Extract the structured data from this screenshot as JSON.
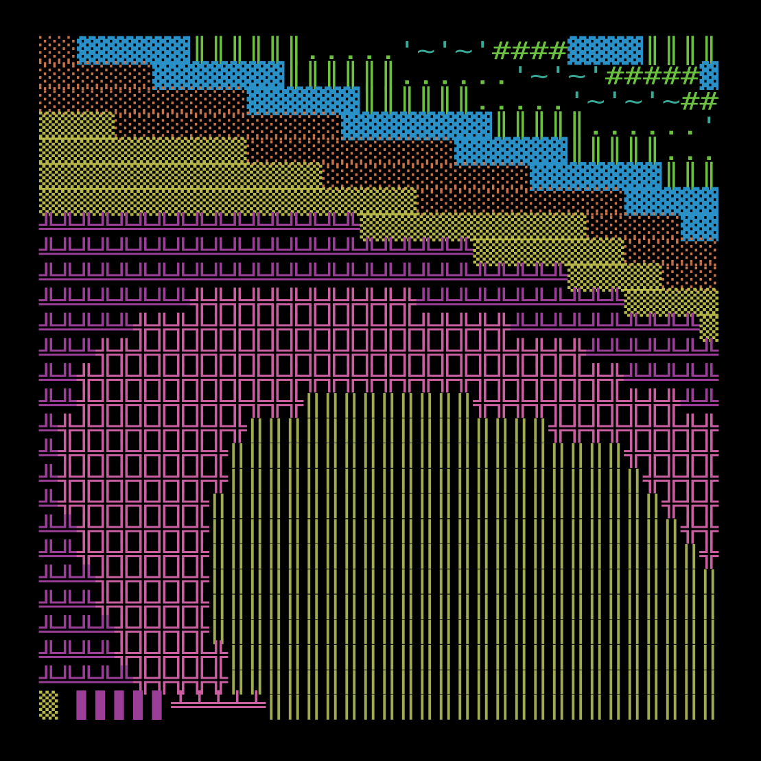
{
  "palette": {
    "O": "#c8744a",
    "Y": "#b8b84a",
    "B": "#2a90c8",
    "G": "#6cc040",
    "T": "#3aaa98",
    "M": "#9a3e98",
    "P": "#c95fa0",
    "L": "#a0aa50"
  },
  "rows": [
    [
      [
        "O",
        "░░"
      ],
      [
        "B",
        "▓▓▓▓▓▓"
      ],
      [
        "G",
        "║║║║║║....."
      ],
      [
        "T",
        "'~'~'"
      ],
      [
        "G",
        "####"
      ],
      [
        "B",
        "▓▓▓▓"
      ],
      [
        "G",
        "║║║║"
      ]
    ],
    [
      [
        "O",
        "░░░░░░"
      ],
      [
        "B",
        "▓▓▓▓▓▓▓"
      ],
      [
        "G",
        "║║║║║║......"
      ],
      [
        "T",
        "'~'~'"
      ],
      [
        "G",
        "#####"
      ],
      [
        "B",
        "▓"
      ]
    ],
    [
      [
        "O",
        "░░░░░░░░░░░"
      ],
      [
        "B",
        "▓▓▓▓▓▓"
      ],
      [
        "G",
        "║║║║║║....."
      ],
      [
        "T",
        "'~'~'~"
      ],
      [
        "G",
        "##"
      ]
    ],
    [
      [
        "Y",
        "▒▒▒▒"
      ],
      [
        "O",
        "░░░░░░░░░░░░"
      ],
      [
        "B",
        "▓▓▓▓▓▓▓▓"
      ],
      [
        "G",
        "║║║║║......"
      ],
      [
        "T",
        "'"
      ]
    ],
    [
      [
        "Y",
        "▒▒▒▒▒▒▒▒▒▒▒"
      ],
      [
        "O",
        "░░░░░░░░░░░"
      ],
      [
        "B",
        "▓▓▓▓▓▓"
      ],
      [
        "G",
        "║║║║║..."
      ]
    ],
    [
      [
        "Y",
        "▒▒▒▒▒▒▒▒▒▒▒▒▒▒▒"
      ],
      [
        "O",
        "░░░░░░░░░░░"
      ],
      [
        "B",
        "▓▓▓▓▓▓▓"
      ],
      [
        "G",
        "║║║"
      ]
    ],
    [
      [
        "Y",
        "▒▒▒▒▒▒▒▒▒▒▒▒▒▒▒▒▒▒▒▒"
      ],
      [
        "O",
        "░░░░░░░░░░░"
      ],
      [
        "B",
        "▓▓▓▓▓"
      ]
    ],
    [
      [
        "M",
        "╩╩╩╩╩╩╩╩╩╩╩╩╩╩╩╩╩"
      ],
      [
        "Y",
        "▒▒▒▒▒▒▒▒▒▒▒▒"
      ],
      [
        "O",
        "░░░░░"
      ],
      [
        "B",
        "▓▓"
      ]
    ],
    [
      [
        "M",
        "╩╩╩╩╩╩╩╩╩╩╩╩╩╩╩╩╩╩╩╩╩╩╩"
      ],
      [
        "Y",
        "▒▒▒▒▒▒▒▒"
      ],
      [
        "O",
        "░░░░░"
      ]
    ],
    [
      [
        "M",
        "╩╩╩╩╩╩╩╩╩╩╩╩╩╩╩╩╩╩╩╩╩╩╩╩╩╩╩╩"
      ],
      [
        "Y",
        "▒▒▒▒▒"
      ],
      [
        "O",
        "░░░"
      ]
    ],
    [
      [
        "M",
        "╩╩╩╩╩╩╩╩"
      ],
      [
        "P",
        "╬╬╬╬╬╬╬╬╬╬╬╬"
      ],
      [
        "M",
        "╩╩╩╩╩╩╩╩╩╩╩"
      ],
      [
        "Y",
        "▒▒▒▒▒"
      ]
    ],
    [
      [
        "M",
        "╩╩╩╩╩"
      ],
      [
        "P",
        "╬╬╬╬╬╬╬╬╬╬╬╬╬╬╬╬╬╬╬╬"
      ],
      [
        "M",
        "╩╩╩╩╩╩╩╩╩╩"
      ],
      [
        "Y",
        "▒"
      ]
    ],
    [
      [
        "M",
        "╩╩╩"
      ],
      [
        "P",
        "╬╬╬╬╬╬╬╬╬╬╬╬╬╬╬╬╬╬╬╬╬╬╬╬╬╬"
      ],
      [
        "M",
        "╩╩╩╩╩╩╩"
      ]
    ],
    [
      [
        "M",
        "╩╩"
      ],
      [
        "P",
        "╬╬╬╬╬╬╬╬╬╬╬╬╬╬╬╬╬╬╬╬╬╬╬╬╬╬╬╬╬"
      ],
      [
        "M",
        "╩╩╩╩╩"
      ]
    ],
    [
      [
        "M",
        "╩╩"
      ],
      [
        "P",
        "╬╬╬╬╬╬╬╬╬╬╬╬"
      ],
      [
        "L",
        "‖‖‖‖‖‖‖‖‖"
      ],
      [
        "P",
        "╬╬╬╬╬╬╬╬╬╬╬"
      ],
      [
        "M",
        "╩╩"
      ]
    ],
    [
      [
        "M",
        "╩"
      ],
      [
        "P",
        "╬╬╬╬╬╬╬╬╬╬"
      ],
      [
        "L",
        "‖‖‖‖‖‖‖‖‖‖‖‖‖‖‖‖"
      ],
      [
        "P",
        "╬╬╬╬╬╬╬╬╬"
      ]
    ],
    [
      [
        "M",
        "╩"
      ],
      [
        "P",
        "╬╬╬╬╬╬╬╬╬"
      ],
      [
        "L",
        "‖‖‖‖‖‖‖‖‖‖‖‖‖‖‖‖‖‖‖‖‖"
      ],
      [
        "P",
        "╬╬╬╬╬"
      ]
    ],
    [
      [
        "M",
        "╩"
      ],
      [
        "P",
        "╬╬╬╬╬╬╬╬╬"
      ],
      [
        "L",
        "‖‖‖‖‖‖‖‖‖‖‖‖‖‖‖‖‖‖‖‖‖‖"
      ],
      [
        "P",
        "╬╬╬╬"
      ]
    ],
    [
      [
        "M",
        "╩"
      ],
      [
        "P",
        "╬╬╬╬╬╬╬╬"
      ],
      [
        "L",
        "‖‖‖‖‖‖‖‖‖‖‖‖‖‖‖‖‖‖‖‖‖‖‖‖"
      ],
      [
        "P",
        "╬╬╬"
      ]
    ],
    [
      [
        "M",
        "╩╩"
      ],
      [
        "P",
        "╬╬╬╬╬╬╬"
      ],
      [
        "L",
        "‖‖‖‖‖‖‖‖‖‖‖‖‖‖‖‖‖‖‖‖‖‖‖‖‖"
      ],
      [
        "P",
        "╬╬"
      ]
    ],
    [
      [
        "M",
        "╩╩"
      ],
      [
        "P",
        "╬╬╬╬╬╬╬"
      ],
      [
        "L",
        "‖‖‖‖‖‖‖‖‖‖‖‖‖‖‖‖‖‖‖‖‖‖‖‖‖‖"
      ],
      [
        "P",
        "╬"
      ]
    ],
    [
      [
        "M",
        "╩╩╩"
      ],
      [
        "P",
        "╬╬╬╬╬╬"
      ],
      [
        "L",
        "‖‖‖‖‖‖‖‖‖‖‖‖‖‖‖‖‖‖‖‖‖‖‖‖‖‖‖"
      ]
    ],
    [
      [
        "M",
        "╩╩╩"
      ],
      [
        "P",
        "╬╬╬╬╬╬"
      ],
      [
        "L",
        "‖‖‖‖‖‖‖‖‖‖‖‖‖‖‖‖‖‖‖‖‖‖‖‖‖‖‖"
      ]
    ],
    [
      [
        "M",
        "╩╩╩╩"
      ],
      [
        "P",
        "╬╬╬╬╬"
      ],
      [
        "L",
        "‖‖‖‖‖‖‖‖‖‖‖‖‖‖‖‖‖‖‖‖‖‖‖‖‖‖‖"
      ]
    ],
    [
      [
        "M",
        "╩╩╩╩"
      ],
      [
        "P",
        "╬╬╬╬╬╬"
      ],
      [
        "L",
        "‖‖‖‖‖‖‖‖‖‖‖‖‖‖‖‖‖‖‖‖‖‖‖‖‖‖"
      ]
    ],
    [
      [
        "M",
        "╩╩╩╩╩"
      ],
      [
        "P",
        "╬╬╬╬╬"
      ],
      [
        "L",
        "‖‖‖‖‖‖‖‖‖‖‖‖‖‖‖‖‖‖‖‖‖‖‖‖‖‖"
      ]
    ],
    [
      [
        "Y",
        "▒"
      ],
      [
        "M",
        " ▌▌▌▌▌"
      ],
      [
        "P",
        "╧╧╧╧╧"
      ],
      [
        "L",
        "‖‖‖‖‖‖‖‖‖‖‖‖‖‖‖‖‖‖‖‖‖‖‖‖"
      ]
    ]
  ]
}
